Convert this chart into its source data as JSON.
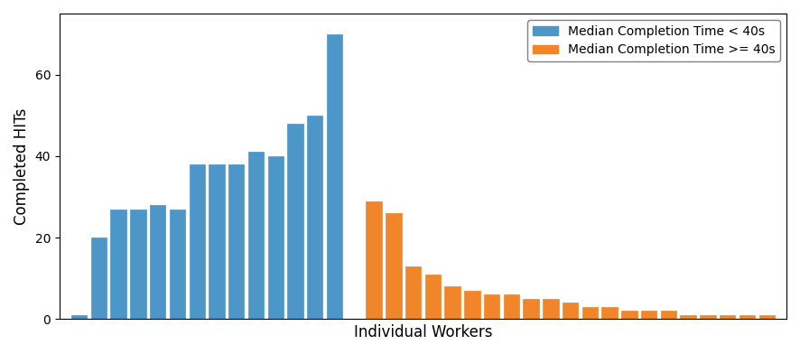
{
  "blue_values": [
    1,
    20,
    27,
    27,
    28,
    27,
    38,
    38,
    38,
    41,
    40,
    48,
    50,
    70
  ],
  "orange_values": [
    0,
    29,
    26,
    13,
    11,
    8,
    7,
    6,
    6,
    5,
    5,
    4,
    3,
    3,
    2,
    2,
    2,
    1,
    1,
    1,
    1,
    1
  ],
  "blue_color": "#4C96C8",
  "orange_color": "#F0852A",
  "ylabel": "Completed HITs",
  "xlabel": "Individual Workers",
  "legend_label_blue": "Median Completion Time < 40s",
  "legend_label_orange": "Median Completion Time >= 40s",
  "ylim": [
    0,
    75
  ],
  "figsize": [
    8.86,
    3.92
  ],
  "dpi": 100
}
